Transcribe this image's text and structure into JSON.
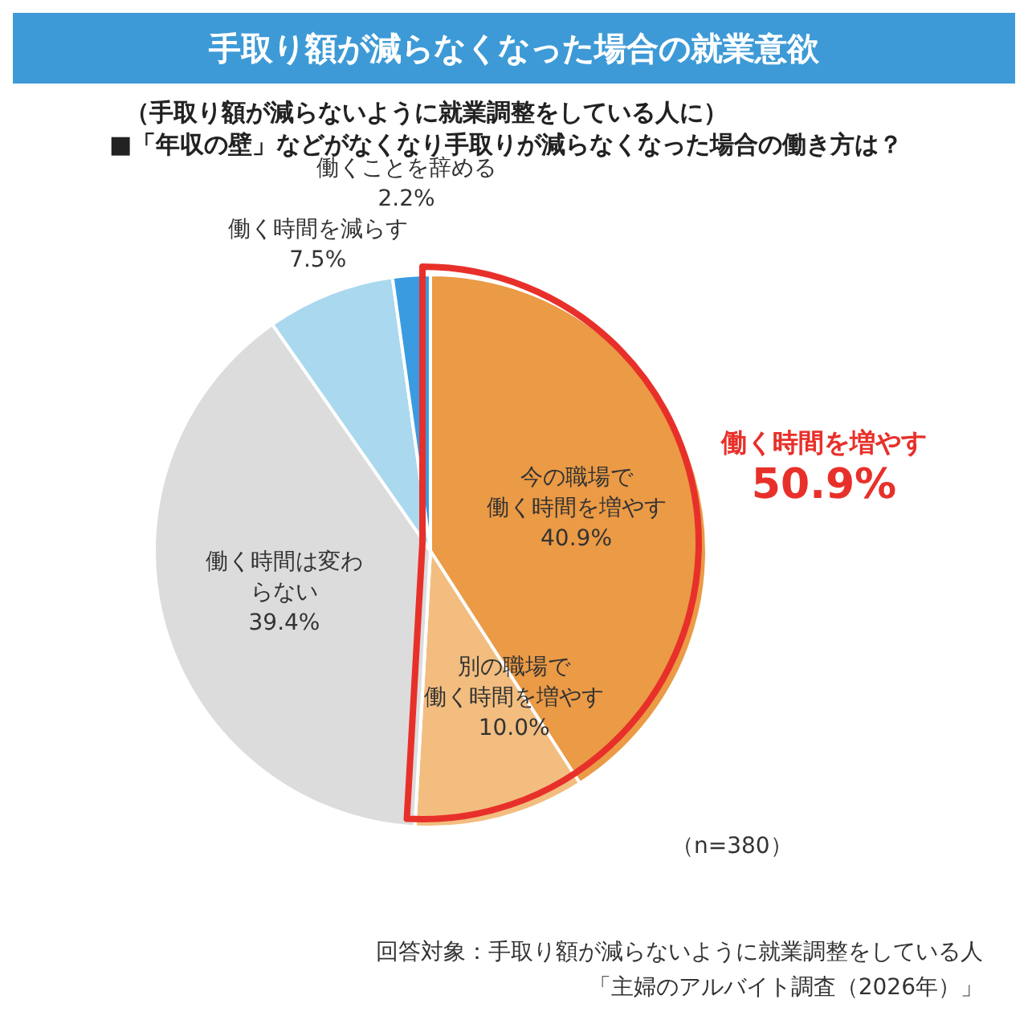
{
  "chart_data": {
    "type": "pie",
    "title": "手取り額が減らなくなった場合の就業意欲",
    "subtitle": "（手取り額が減らないように就業調整をしている人に）\n■「年収の壁」などがなくなり手取りが減らなくなった場合の働き方は？",
    "categories": [
      "今の職場で働く時間を増やす",
      "別の職場で働く時間を増やす",
      "働く時間は変わらない",
      "働く時間を減らす",
      "働くことを辞める"
    ],
    "values": [
      40.9,
      10.0,
      39.4,
      7.5,
      2.2
    ],
    "value_labels": [
      "40.9%",
      "10.0%",
      "39.4%",
      "7.5%",
      "2.2%"
    ],
    "colors": [
      "#eb9a45",
      "#f2bd7f",
      "#dcdcdc",
      "#aad8ee",
      "#3a9be0"
    ],
    "annotations": [
      "働く時間を増やす",
      "50.9%",
      "（n=380）",
      "回答対象：手取り額が減らないように就業調整をしている人",
      "「主婦のアルバイト調査（2026年）」"
    ]
  }
}
